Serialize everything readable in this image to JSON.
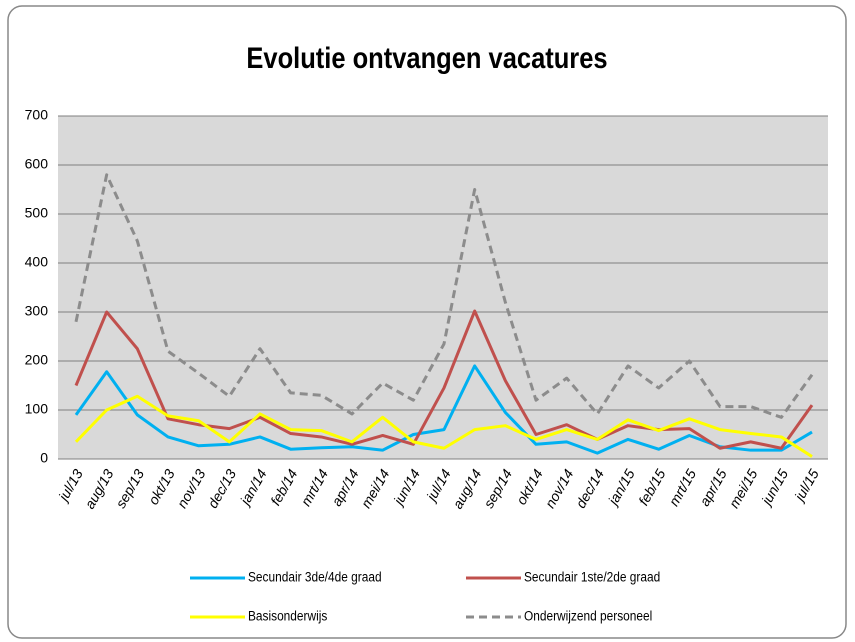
{
  "chart_data": {
    "type": "line",
    "title": "Evolutie ontvangen vacatures",
    "categories": [
      "jul/13",
      "aug/13",
      "sep/13",
      "okt/13",
      "nov/13",
      "dec/13",
      "jan/14",
      "feb/14",
      "mrt/14",
      "apr/14",
      "mei/14",
      "jun/14",
      "jul/14",
      "aug/14",
      "sep/14",
      "okt/14",
      "nov/14",
      "dec/14",
      "jan/15",
      "feb/15",
      "mrt/15",
      "apr/15",
      "mei/15",
      "jun/15",
      "jul/15"
    ],
    "series": [
      {
        "name": "Secundair 3de/4de graad",
        "color": "#00b0f0",
        "dashed": false,
        "values": [
          90,
          178,
          90,
          45,
          27,
          30,
          45,
          20,
          23,
          25,
          18,
          50,
          60,
          190,
          95,
          30,
          35,
          12,
          40,
          20,
          48,
          25,
          18,
          18,
          55
        ]
      },
      {
        "name": "Secundair 1ste/2de graad",
        "color": "#c0504d",
        "dashed": false,
        "values": [
          150,
          300,
          225,
          82,
          70,
          62,
          85,
          52,
          45,
          30,
          48,
          30,
          145,
          302,
          160,
          50,
          70,
          40,
          68,
          60,
          62,
          22,
          35,
          22,
          110
        ]
      },
      {
        "name": "Basisonderwijs",
        "color": "#ffff00",
        "dashed": false,
        "values": [
          35,
          100,
          128,
          88,
          78,
          35,
          92,
          60,
          58,
          35,
          85,
          35,
          22,
          60,
          68,
          40,
          60,
          40,
          80,
          58,
          82,
          60,
          52,
          45,
          5
        ]
      },
      {
        "name": "Onderwijzend personeel",
        "color": "#8c8c8c",
        "dashed": true,
        "values": [
          280,
          580,
          445,
          220,
          175,
          128,
          225,
          135,
          130,
          92,
          155,
          120,
          235,
          550,
          320,
          120,
          165,
          92,
          190,
          145,
          200,
          107,
          107,
          85,
          172
        ]
      }
    ],
    "ylim": [
      0,
      700
    ],
    "yticks": [
      0,
      100,
      200,
      300,
      400,
      500,
      600,
      700
    ],
    "grid": true,
    "legend": "bottom"
  }
}
